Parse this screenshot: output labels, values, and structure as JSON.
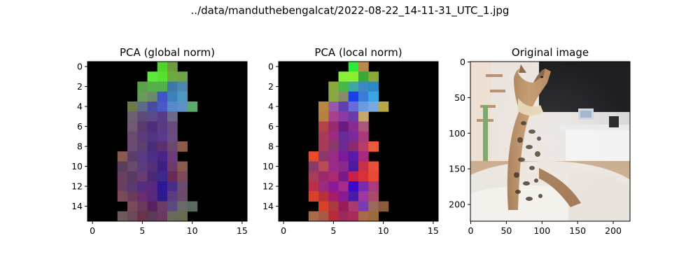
{
  "figure": {
    "suptitle": "../data/manduthebengalcat/2022-08-22_14-11-31_UTC_1.jpg",
    "background": "#ffffff"
  },
  "chart_data": [
    {
      "type": "heatmap",
      "title": "PCA (global norm)",
      "grid_size": [
        16,
        16
      ],
      "xlim": [
        -0.5,
        15.5
      ],
      "ylim": [
        15.5,
        -0.5
      ],
      "x_ticks": [
        0,
        5,
        10,
        15
      ],
      "y_ticks": [
        0,
        2,
        4,
        6,
        8,
        10,
        12,
        14
      ],
      "background_color": "#000000",
      "cells": [
        [
          0,
          7,
          "#4fd42a"
        ],
        [
          0,
          8,
          "#6f9a3e"
        ],
        [
          1,
          6,
          "#5de83a"
        ],
        [
          1,
          7,
          "#58e02e"
        ],
        [
          1,
          8,
          "#6cac3e"
        ],
        [
          1,
          9,
          "#70a248"
        ],
        [
          2,
          5,
          "#5aa04a"
        ],
        [
          2,
          6,
          "#54b048"
        ],
        [
          2,
          7,
          "#52b04c"
        ],
        [
          2,
          8,
          "#3f78a8"
        ],
        [
          2,
          9,
          "#4a88b0"
        ],
        [
          3,
          5,
          "#6a9a5a"
        ],
        [
          3,
          6,
          "#6c8a6a"
        ],
        [
          3,
          7,
          "#3e56c8"
        ],
        [
          3,
          8,
          "#3a82b8"
        ],
        [
          3,
          9,
          "#4a98c0"
        ],
        [
          4,
          4,
          "#6a7a48"
        ],
        [
          4,
          5,
          "#5e6a8a"
        ],
        [
          4,
          6,
          "#4a4aa0"
        ],
        [
          4,
          7,
          "#4d58c8"
        ],
        [
          4,
          8,
          "#568acc"
        ],
        [
          4,
          9,
          "#6090c8"
        ],
        [
          4,
          10,
          "#5aaa6a"
        ],
        [
          5,
          4,
          "#6a6070"
        ],
        [
          5,
          5,
          "#5e4a78"
        ],
        [
          5,
          6,
          "#5a4a8a"
        ],
        [
          5,
          7,
          "#5a3a8a"
        ],
        [
          5,
          8,
          "#6a6a8a"
        ],
        [
          6,
          4,
          "#6e5a72"
        ],
        [
          6,
          5,
          "#5a3a6a"
        ],
        [
          6,
          6,
          "#4e2e7a"
        ],
        [
          6,
          7,
          "#5a3a80"
        ],
        [
          6,
          8,
          "#6a4a7a"
        ],
        [
          7,
          4,
          "#6a4a6e"
        ],
        [
          7,
          5,
          "#5a3a7a"
        ],
        [
          7,
          6,
          "#4e3482"
        ],
        [
          7,
          7,
          "#5a3a8a"
        ],
        [
          7,
          8,
          "#6a4a80"
        ],
        [
          8,
          4,
          "#6a4a70"
        ],
        [
          8,
          5,
          "#5e4070"
        ],
        [
          8,
          6,
          "#4a2c7a"
        ],
        [
          8,
          7,
          "#5a3070"
        ],
        [
          8,
          8,
          "#6a4870"
        ],
        [
          8,
          9,
          "#8a5a4a"
        ],
        [
          9,
          3,
          "#8a5a4e"
        ],
        [
          9,
          4,
          "#5a3e6a"
        ],
        [
          9,
          5,
          "#583a80"
        ],
        [
          9,
          6,
          "#4a2e88"
        ],
        [
          9,
          7,
          "#4a2288"
        ],
        [
          9,
          8,
          "#6a3c7a"
        ],
        [
          10,
          3,
          "#5a3e60"
        ],
        [
          10,
          4,
          "#6a4a6a"
        ],
        [
          10,
          5,
          "#5a3c80"
        ],
        [
          10,
          6,
          "#54307a"
        ],
        [
          10,
          7,
          "#3c2080"
        ],
        [
          10,
          8,
          "#6e3a6a"
        ],
        [
          10,
          9,
          "#8a5a4a"
        ],
        [
          11,
          3,
          "#6a4060"
        ],
        [
          11,
          4,
          "#5a3a60"
        ],
        [
          11,
          5,
          "#6a3c70"
        ],
        [
          11,
          6,
          "#4a2878"
        ],
        [
          11,
          7,
          "#3c2a8a"
        ],
        [
          11,
          8,
          "#6a2a58"
        ],
        [
          11,
          9,
          "#7a4a5a"
        ],
        [
          12,
          3,
          "#6a4060"
        ],
        [
          12,
          4,
          "#5c3870"
        ],
        [
          12,
          5,
          "#542c80"
        ],
        [
          12,
          6,
          "#5a2880"
        ],
        [
          12,
          7,
          "#2a1898"
        ],
        [
          12,
          8,
          "#4a2c8a"
        ],
        [
          12,
          9,
          "#6a4c70"
        ],
        [
          13,
          3,
          "#7a4a58"
        ],
        [
          13,
          4,
          "#6a3c5a"
        ],
        [
          13,
          5,
          "#6a2c70"
        ],
        [
          13,
          6,
          "#5a2a7a"
        ],
        [
          13,
          7,
          "#2e1c8c"
        ],
        [
          13,
          8,
          "#5a3c80"
        ],
        [
          13,
          9,
          "#6a4a6a"
        ],
        [
          14,
          4,
          "#7a4a5a"
        ],
        [
          14,
          5,
          "#6a3a5a"
        ],
        [
          14,
          6,
          "#5a2060"
        ],
        [
          14,
          7,
          "#6a3c6a"
        ],
        [
          14,
          8,
          "#5a4a80"
        ],
        [
          14,
          9,
          "#6a6a6a"
        ],
        [
          14,
          10,
          "#5a6a5a"
        ],
        [
          15,
          3,
          "#6e5a5a"
        ],
        [
          15,
          4,
          "#6a4a5a"
        ],
        [
          15,
          5,
          "#6a3248"
        ],
        [
          15,
          6,
          "#5a3a58"
        ],
        [
          15,
          7,
          "#6a3a5e"
        ],
        [
          15,
          8,
          "#6a6a5a"
        ],
        [
          15,
          9,
          "#6a6a50"
        ]
      ]
    },
    {
      "type": "heatmap",
      "title": "PCA (local norm)",
      "grid_size": [
        16,
        16
      ],
      "xlim": [
        -0.5,
        15.5
      ],
      "ylim": [
        15.5,
        -0.5
      ],
      "x_ticks": [
        0,
        5,
        10,
        15
      ],
      "y_ticks": [
        0,
        2,
        4,
        6,
        8,
        10,
        12,
        14
      ],
      "background_color": "#000000",
      "cells": [
        [
          0,
          7,
          "#2ee83a"
        ],
        [
          0,
          8,
          "#b88a4a"
        ],
        [
          1,
          6,
          "#88f03a"
        ],
        [
          1,
          7,
          "#8af02e"
        ],
        [
          1,
          8,
          "#3aa838"
        ],
        [
          1,
          9,
          "#8aa838"
        ],
        [
          2,
          5,
          "#8aa83c"
        ],
        [
          2,
          6,
          "#48b844"
        ],
        [
          2,
          7,
          "#3ea8a0"
        ],
        [
          2,
          8,
          "#3a8ac0"
        ],
        [
          2,
          9,
          "#2e88c8"
        ],
        [
          3,
          5,
          "#88a848"
        ],
        [
          3,
          6,
          "#8a8a6a"
        ],
        [
          3,
          7,
          "#1a40e8"
        ],
        [
          3,
          8,
          "#3a7ad8"
        ],
        [
          3,
          9,
          "#3aa8e0"
        ],
        [
          4,
          4,
          "#b8863e"
        ],
        [
          4,
          5,
          "#9a58a8"
        ],
        [
          4,
          6,
          "#6040b0"
        ],
        [
          4,
          7,
          "#6a6ad8"
        ],
        [
          4,
          8,
          "#6a9ae0"
        ],
        [
          4,
          9,
          "#7aa8e0"
        ],
        [
          4,
          10,
          "#b8a848"
        ],
        [
          5,
          4,
          "#b8803e"
        ],
        [
          5,
          5,
          "#a8408a"
        ],
        [
          5,
          6,
          "#8a3aa0"
        ],
        [
          5,
          7,
          "#6a3aa8"
        ],
        [
          5,
          8,
          "#c8a86a"
        ],
        [
          6,
          4,
          "#b8404a"
        ],
        [
          6,
          5,
          "#9a2a70"
        ],
        [
          6,
          6,
          "#6a1a80"
        ],
        [
          6,
          7,
          "#8a2a90"
        ],
        [
          6,
          8,
          "#a8587a"
        ],
        [
          7,
          4,
          "#a83a5a"
        ],
        [
          7,
          5,
          "#9a2a80"
        ],
        [
          7,
          6,
          "#6a2a98"
        ],
        [
          7,
          7,
          "#7a2a9a"
        ],
        [
          7,
          8,
          "#a83a7a"
        ],
        [
          8,
          4,
          "#a83a5a"
        ],
        [
          8,
          5,
          "#8a3a6a"
        ],
        [
          8,
          6,
          "#6a2a90"
        ],
        [
          8,
          7,
          "#8a2a70"
        ],
        [
          8,
          8,
          "#b83a6a"
        ],
        [
          8,
          9,
          "#e85a3a"
        ],
        [
          9,
          3,
          "#e84a2a"
        ],
        [
          9,
          4,
          "#8a3a6a"
        ],
        [
          9,
          5,
          "#9a2a88"
        ],
        [
          9,
          6,
          "#7a1a98"
        ],
        [
          9,
          7,
          "#5a1aa8"
        ],
        [
          9,
          8,
          "#a82a80"
        ],
        [
          10,
          3,
          "#8a3a6a"
        ],
        [
          10,
          4,
          "#b84a5a"
        ],
        [
          10,
          5,
          "#9a2a88"
        ],
        [
          10,
          6,
          "#8a2a88"
        ],
        [
          10,
          7,
          "#4a1aa0"
        ],
        [
          10,
          8,
          "#c8304a"
        ],
        [
          10,
          9,
          "#e8503a"
        ],
        [
          11,
          3,
          "#a83a5a"
        ],
        [
          11,
          4,
          "#9a2a6a"
        ],
        [
          11,
          5,
          "#a82a70"
        ],
        [
          11,
          6,
          "#7a1a88"
        ],
        [
          11,
          7,
          "#c8204a"
        ],
        [
          11,
          8,
          "#d8303a"
        ],
        [
          11,
          9,
          "#e84a3a"
        ],
        [
          12,
          3,
          "#b8304a"
        ],
        [
          12,
          4,
          "#9a2a80"
        ],
        [
          12,
          5,
          "#8a1a98"
        ],
        [
          12,
          6,
          "#a82a88"
        ],
        [
          12,
          7,
          "#3a0ac8"
        ],
        [
          12,
          8,
          "#7a2ab0"
        ],
        [
          12,
          9,
          "#a83a80"
        ],
        [
          13,
          3,
          "#d8402a"
        ],
        [
          13,
          4,
          "#b8303a"
        ],
        [
          13,
          5,
          "#a81a6a"
        ],
        [
          13,
          6,
          "#8a1a90"
        ],
        [
          13,
          7,
          "#4a1aa8"
        ],
        [
          13,
          8,
          "#9a3aa0"
        ],
        [
          13,
          9,
          "#a84a6a"
        ],
        [
          14,
          4,
          "#d8402a"
        ],
        [
          14,
          5,
          "#a83a40"
        ],
        [
          14,
          6,
          "#9a1a5a"
        ],
        [
          14,
          7,
          "#a83a70"
        ],
        [
          14,
          8,
          "#7a3ab0"
        ],
        [
          14,
          9,
          "#9a6a5a"
        ],
        [
          14,
          10,
          "#8a5a3a"
        ],
        [
          15,
          3,
          "#a86a4a"
        ],
        [
          15,
          4,
          "#a85a4a"
        ],
        [
          15,
          5,
          "#b82a3a"
        ],
        [
          15,
          6,
          "#9a2a5a"
        ],
        [
          15,
          7,
          "#a82a5a"
        ],
        [
          15,
          8,
          "#a86a4a"
        ],
        [
          15,
          9,
          "#9a6a3a"
        ]
      ]
    },
    {
      "type": "image",
      "title": "Original image",
      "xlim": [
        -0.5,
        223.5
      ],
      "ylim": [
        223.5,
        -0.5
      ],
      "x_ticks": [
        0,
        50,
        100,
        150,
        200
      ],
      "y_ticks": [
        0,
        50,
        100,
        150,
        200
      ]
    }
  ]
}
